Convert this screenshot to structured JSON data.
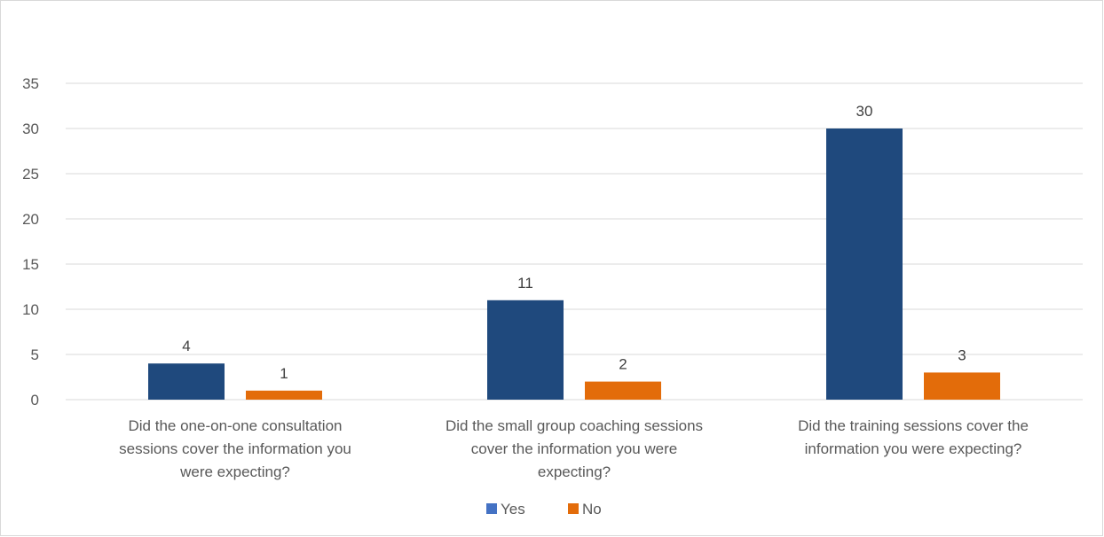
{
  "chart_data": {
    "type": "bar",
    "title": "",
    "xlabel": "",
    "ylabel": "",
    "ylim": [
      0,
      35
    ],
    "yticks": [
      0,
      5,
      10,
      15,
      20,
      25,
      30,
      35
    ],
    "grid": true,
    "legend_position": "bottom",
    "categories": [
      "Did the one-on-one consultation sessions cover the information you were expecting?",
      "Did the small group coaching sessions cover the information you were expecting?",
      "Did the training sessions cover the information you were expecting?"
    ],
    "category_lines": [
      [
        "Did the one-on-one consultation",
        "sessions cover the information you",
        "were expecting?"
      ],
      [
        "Did the small group coaching sessions",
        "cover the information you were",
        "expecting?"
      ],
      [
        "Did the training sessions cover the",
        "information you were expecting?"
      ]
    ],
    "series": [
      {
        "name": "Yes",
        "color": "#1f497d",
        "legend_color": "#4472c4",
        "values": [
          4,
          11,
          30
        ]
      },
      {
        "name": "No",
        "color": "#e36c0a",
        "legend_color": "#e36c0a",
        "values": [
          1,
          2,
          3
        ]
      }
    ]
  }
}
